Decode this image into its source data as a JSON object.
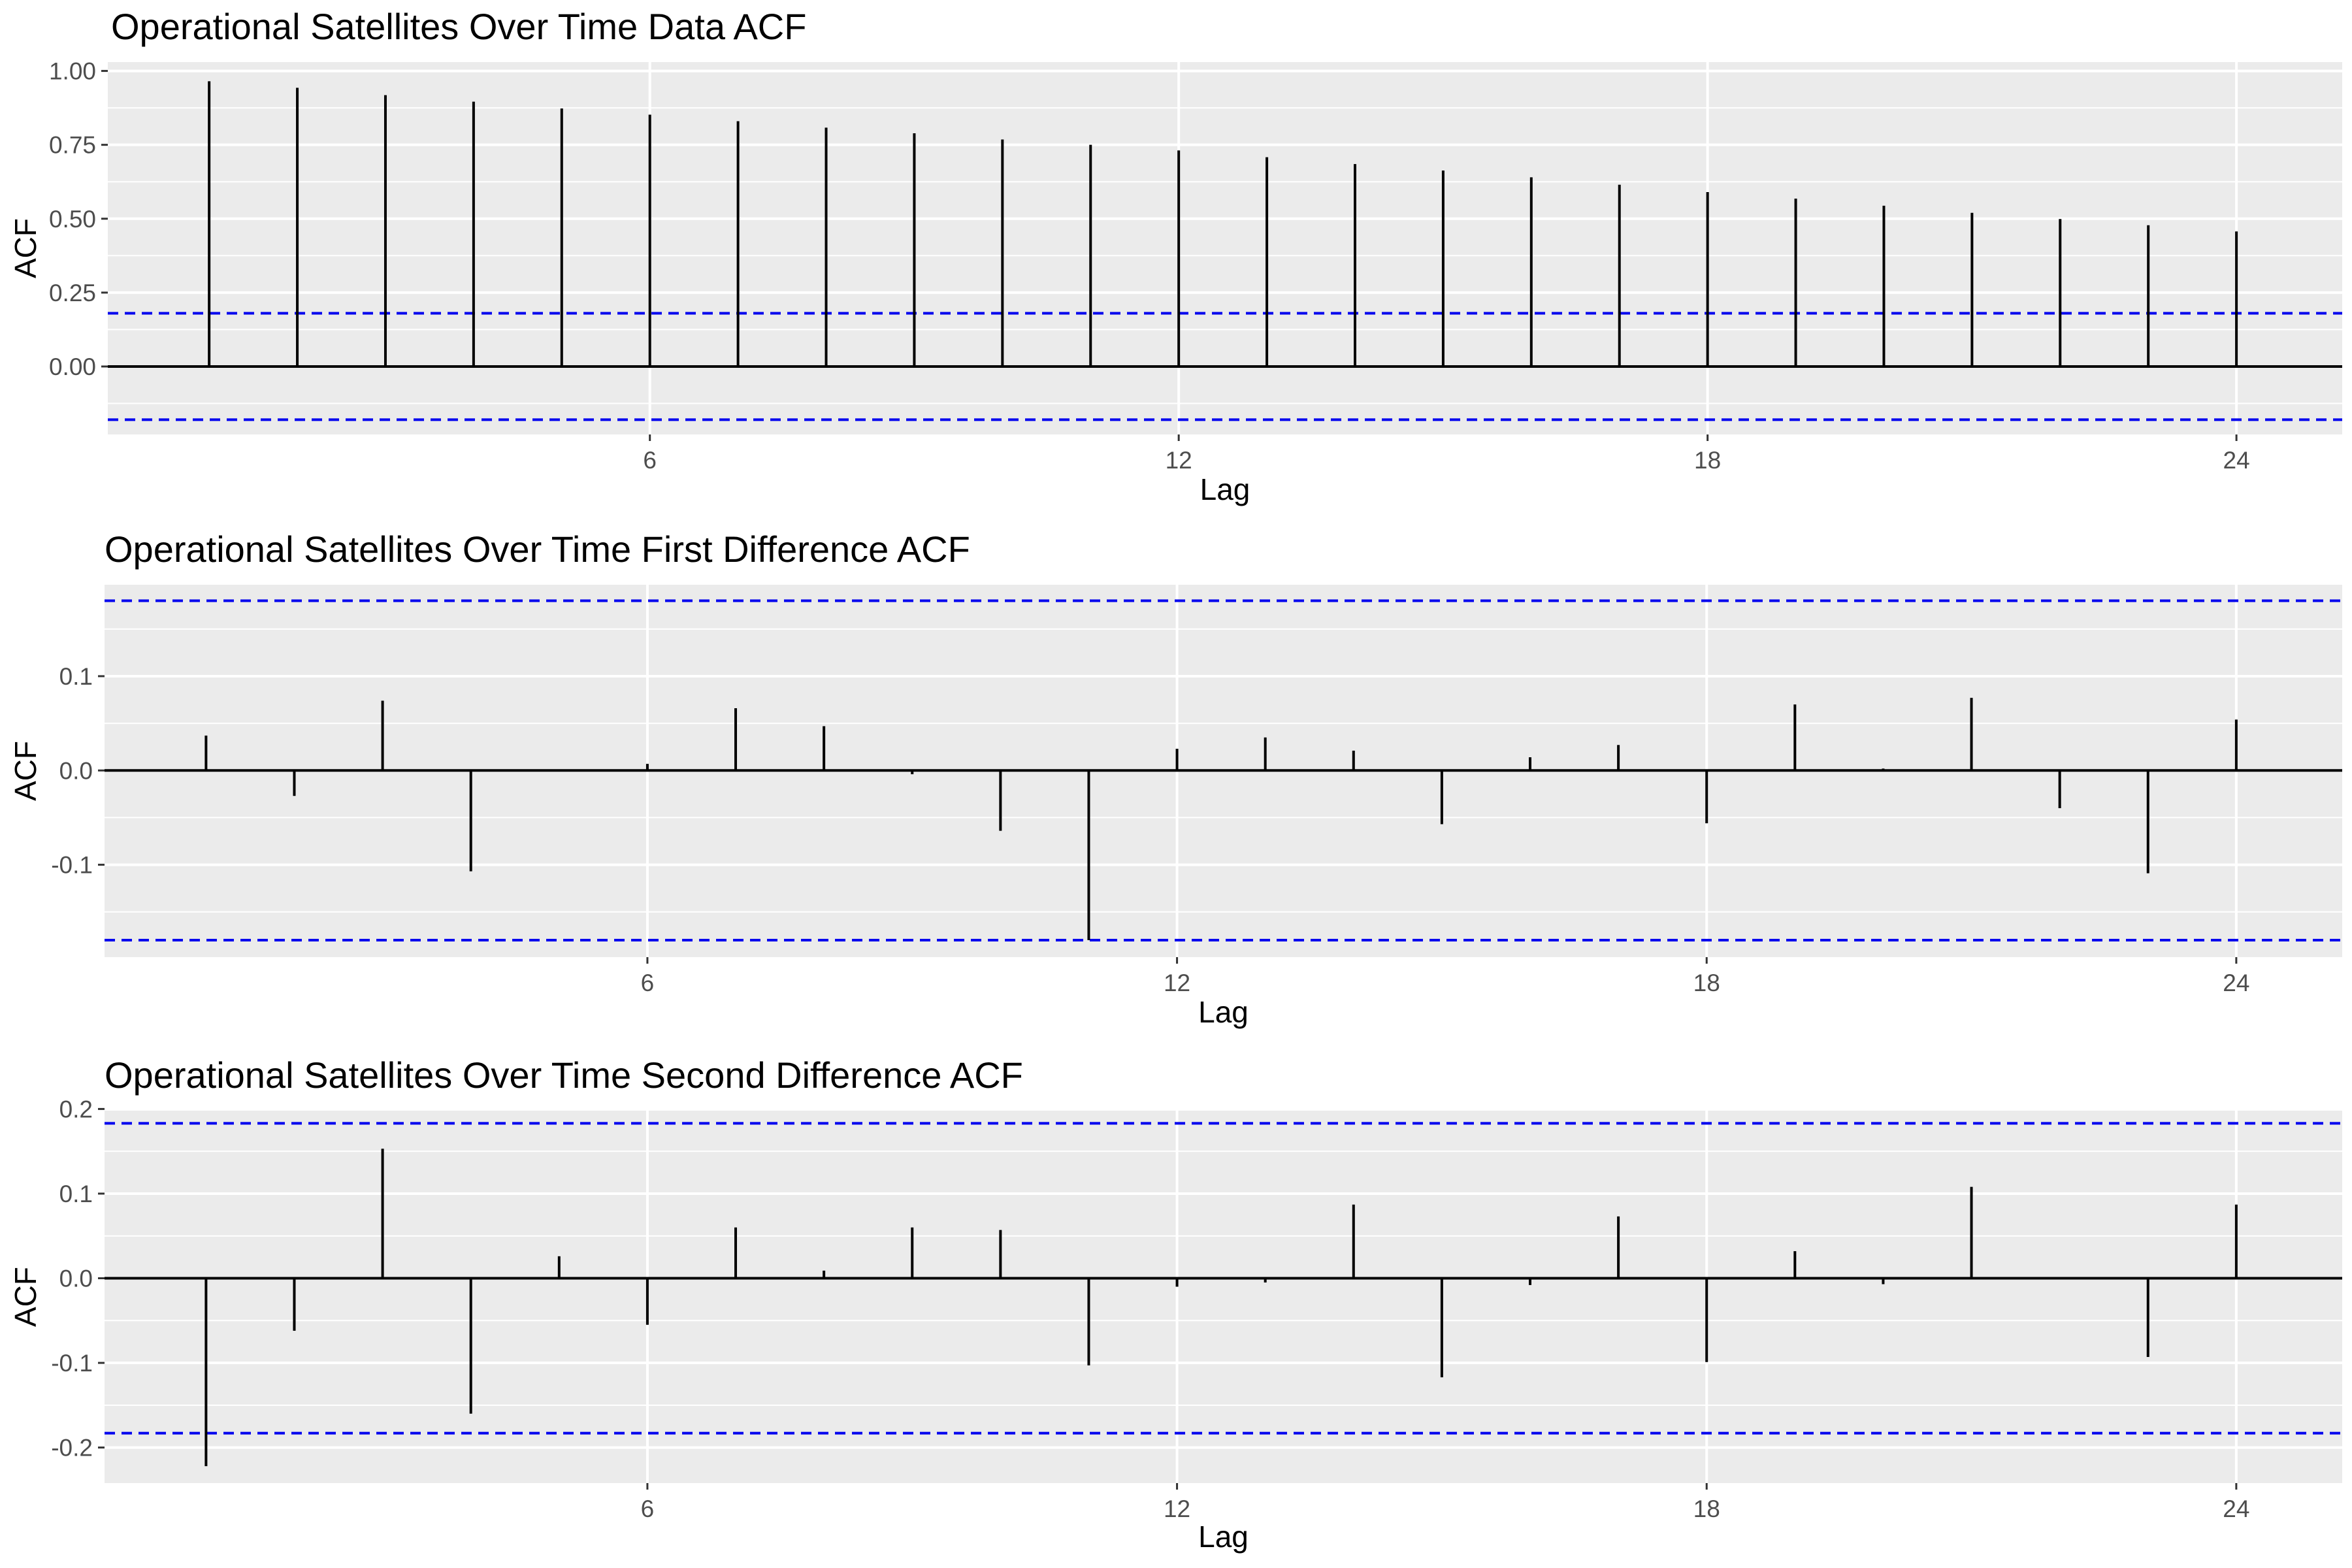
{
  "colors": {
    "panel_background": "#ebebeb",
    "grid": "#ffffff",
    "bars": "#000000",
    "confidence_bounds": "#0000ee",
    "tick_text": "#4d4d4d"
  },
  "chart_data": [
    {
      "type": "bar",
      "subtype": "acf-stem",
      "title": "Operational Satellites Over Time Data ACF",
      "xlabel": "Lag",
      "ylabel": "ACF",
      "x_ticks": [
        6,
        12,
        18,
        24
      ],
      "x_tick_labels": [
        "6",
        "12",
        "18",
        "24"
      ],
      "y_ticks": [
        0,
        0.25,
        0.5,
        0.75,
        1.0
      ],
      "y_tick_labels": [
        "0.00",
        "0.25",
        "0.50",
        "0.75",
        "1.00"
      ],
      "xlim": [
        -0.15,
        25.2
      ],
      "ylim": [
        -0.23,
        1.03
      ],
      "confidence_bound": 0.18,
      "grid": true,
      "lags": [
        1,
        2,
        3,
        4,
        5,
        6,
        7,
        8,
        9,
        10,
        11,
        12,
        13,
        14,
        15,
        16,
        17,
        18,
        19,
        20,
        21,
        22,
        23,
        24
      ],
      "values": [
        0.965,
        0.943,
        0.918,
        0.896,
        0.873,
        0.852,
        0.83,
        0.808,
        0.789,
        0.768,
        0.75,
        0.731,
        0.708,
        0.685,
        0.663,
        0.64,
        0.615,
        0.59,
        0.568,
        0.544,
        0.52,
        0.499,
        0.478,
        0.457
      ]
    },
    {
      "type": "bar",
      "subtype": "acf-stem",
      "title": "Operational Satellites Over Time First Difference ACF",
      "xlabel": "Lag",
      "ylabel": "ACF",
      "x_ticks": [
        6,
        12,
        18,
        24
      ],
      "x_tick_labels": [
        "6",
        "12",
        "18",
        "24"
      ],
      "y_ticks": [
        -0.1,
        0.0,
        0.1
      ],
      "y_tick_labels": [
        "-0.1",
        "0.0",
        "0.1"
      ],
      "xlim": [
        -0.15,
        25.2
      ],
      "ylim": [
        -0.198,
        0.197
      ],
      "confidence_bound": 0.18,
      "grid": true,
      "lags": [
        1,
        2,
        3,
        4,
        5,
        6,
        7,
        8,
        9,
        10,
        11,
        12,
        13,
        14,
        15,
        16,
        17,
        18,
        19,
        20,
        21,
        22,
        23,
        24
      ],
      "values": [
        0.037,
        -0.027,
        0.074,
        -0.107,
        0.0,
        0.007,
        0.066,
        0.047,
        -0.004,
        -0.064,
        -0.18,
        0.023,
        0.035,
        0.021,
        -0.057,
        0.014,
        0.027,
        -0.056,
        0.07,
        0.002,
        0.077,
        -0.04,
        -0.109,
        0.054
      ]
    },
    {
      "type": "bar",
      "subtype": "acf-stem",
      "title": "Operational Satellites Over Time Second Difference ACF",
      "xlabel": "Lag",
      "ylabel": "ACF",
      "x_ticks": [
        6,
        12,
        18,
        24
      ],
      "x_tick_labels": [
        "6",
        "12",
        "18",
        "24"
      ],
      "y_ticks": [
        -0.2,
        -0.1,
        0.0,
        0.1,
        0.2
      ],
      "y_tick_labels": [
        "-0.2",
        "-0.1",
        "0.0",
        "0.1",
        "0.2"
      ],
      "xlim": [
        -0.15,
        25.2
      ],
      "ylim": [
        -0.242,
        0.198
      ],
      "confidence_bound": 0.183,
      "grid": true,
      "lags": [
        1,
        2,
        3,
        4,
        5,
        6,
        7,
        8,
        9,
        10,
        11,
        12,
        13,
        14,
        15,
        16,
        17,
        18,
        19,
        20,
        21,
        22,
        23,
        24
      ],
      "values": [
        -0.222,
        -0.062,
        0.153,
        -0.16,
        0.026,
        -0.055,
        0.06,
        0.009,
        0.06,
        0.057,
        -0.103,
        -0.01,
        -0.005,
        0.087,
        -0.117,
        -0.008,
        0.073,
        -0.099,
        0.032,
        -0.007,
        0.108,
        0.001,
        -0.093,
        0.087
      ]
    }
  ]
}
